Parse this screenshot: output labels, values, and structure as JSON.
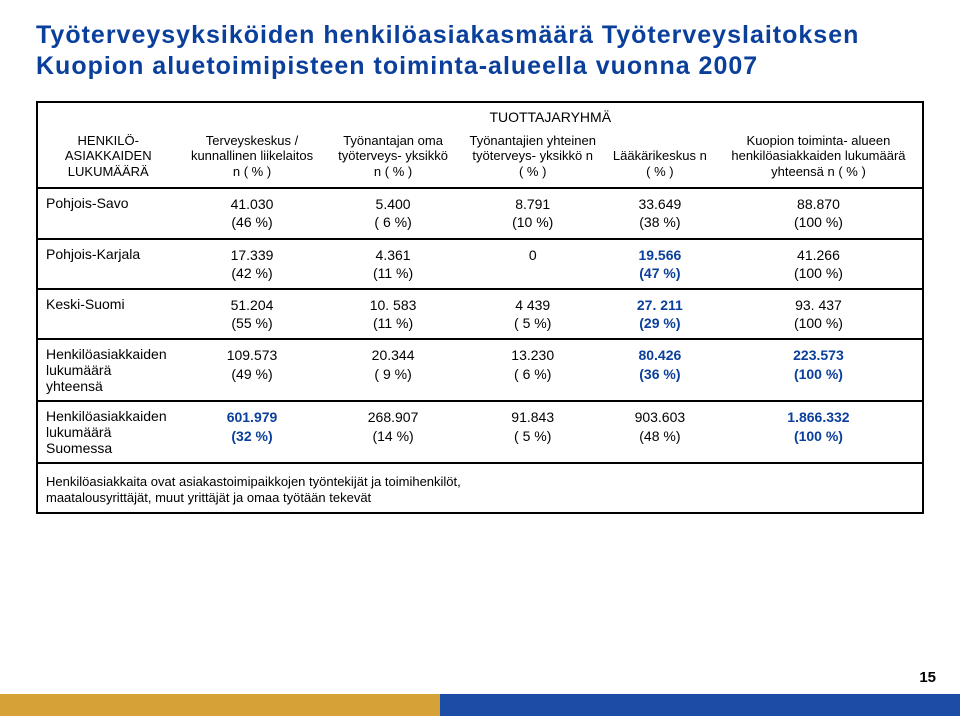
{
  "title": "Työterveysyksiköiden henkilöasiakasmäärä Työterveyslaitoksen Kuopion aluetoimipisteen toiminta-alueella vuonna 2007",
  "supergroup": "TUOTTAJARYHMÄ",
  "headers": {
    "rowhead": "HENKILÖ-\nASIAKKAIDEN\nLUKUMÄÄRÄ",
    "c1": "Terveyskeskus /\nkunnallinen\nliikelaitos\nn\n( % )",
    "c2": "Työnantajan\noma\ntyöterveys-\nyksikkö\nn\n( % )",
    "c3": "Työnantajien\nyhteinen\ntyöterveys-\nyksikkö\nn\n( % )",
    "c4": "Lääkärikeskus\nn\n( % )",
    "c5": "Kuopion toiminta-\nalueen\nhenkilöasiakkaiden\nlukumäärä yhteensä\nn\n( % )"
  },
  "rows": [
    {
      "label": "Pohjois-Savo",
      "c1": "41.030\n(46 %)",
      "c2": "5.400\n( 6 %)",
      "c3": "8.791\n(10 %)",
      "c4": "33.649\n(38 %)",
      "c5": "88.870\n(100 %)"
    },
    {
      "label": "Pohjois-Karjala",
      "c1": "17.339\n(42 %)",
      "c2": "4.361\n(11 %)",
      "c3": "0",
      "c4": "19.566\n(47 %)",
      "c4_blue": true,
      "c5": "41.266\n(100 %)"
    },
    {
      "label": "Keski-Suomi",
      "c1": "51.204\n(55 %)",
      "c2": "10. 583\n(11 %)",
      "c3": "4 439\n( 5 %)",
      "c4": "27. 211\n(29 %)",
      "c4_blue": true,
      "c5": "93. 437\n(100 %)"
    },
    {
      "label": "Henkilöasiakkaiden\nlukumäärä yhteensä",
      "c1": "109.573\n(49 %)",
      "c2": "20.344\n( 9 %)",
      "c3": "13.230\n( 6 %)",
      "c4": "80.426\n(36 %)",
      "c4_blue": true,
      "c5": "223.573\n(100 %)",
      "c5_blue": true
    },
    {
      "label": "Henkilöasiakkaiden\nlukumäärä Suomessa",
      "c1": "601.979\n(32 %)",
      "c1_blue": true,
      "c2": "268.907\n(14 %)",
      "c3": "91.843\n( 5 %)",
      "c4": "903.603\n(48 %)",
      "c5": "1.866.332\n(100 %)",
      "c5_blue": true
    }
  ],
  "footnote": "Henkilöasiakkaita ovat asiakastoimipaikkojen työntekijät ja toimihenkilöt,\nmaatalousyrittäjät, muut yrittäjät ja omaa työtään tekevät",
  "pagenum": "15",
  "colors": {
    "title": "#0a3f9c",
    "highlight": "#0a3f9c",
    "footer_gold": "#d6a238",
    "footer_blue": "#1b4da6",
    "border": "#000000"
  }
}
